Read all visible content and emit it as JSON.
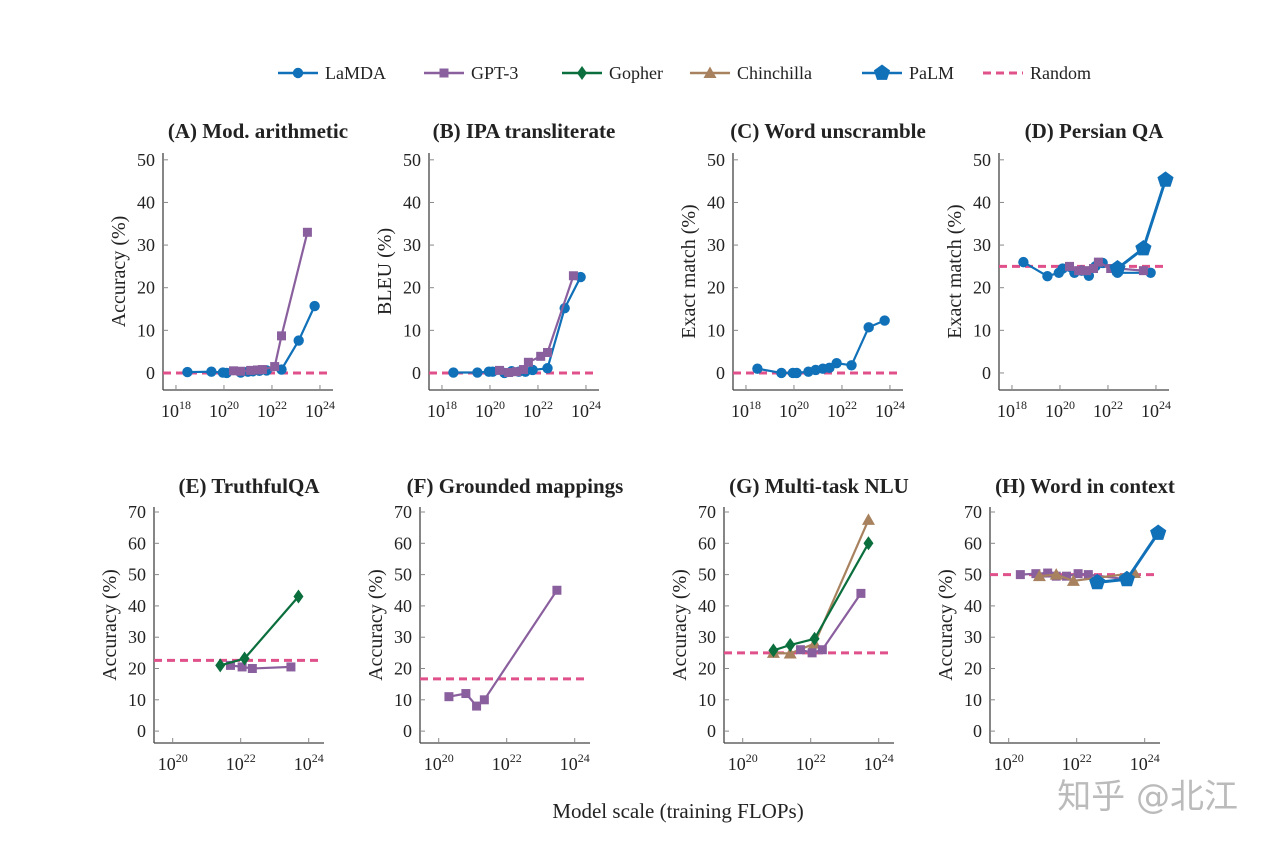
{
  "chart_data": {
    "legend": {
      "placement": "top",
      "items": [
        {
          "key": "lamda",
          "name": "LaMDA",
          "color": "#1070b8",
          "marker": "circle",
          "dashed": false
        },
        {
          "key": "gpt3",
          "name": "GPT-3",
          "color": "#8a5f9e",
          "marker": "square",
          "dashed": false
        },
        {
          "key": "gopher",
          "name": "Gopher",
          "color": "#0b6e3d",
          "marker": "diamond",
          "dashed": false
        },
        {
          "key": "chinchilla",
          "name": "Chinchilla",
          "color": "#a8825f",
          "marker": "triangle",
          "dashed": false
        },
        {
          "key": "palm",
          "name": "PaLM",
          "color": "#1070b8",
          "marker": "pentagon",
          "dashed": false
        },
        {
          "key": "random",
          "name": "Random",
          "color": "#e0508a",
          "marker": "none",
          "dashed": true
        }
      ]
    },
    "xlabel": "Model scale (training FLOPs)",
    "x_scale": "log",
    "grid": false,
    "panels": [
      {
        "type": "line",
        "title": "(A) Mod. arithmetic",
        "ylabel": "Accuracy (%)",
        "ylim": [
          -4,
          52
        ],
        "yticks": [
          0,
          10,
          20,
          30,
          40,
          50
        ],
        "xticks": [
          1e+18,
          1e+20,
          1e+22,
          1e+24
        ],
        "random": 0,
        "series": [
          {
            "key": "lamda",
            "x": [
              3e+18,
              3e+19,
              9e+19,
              1.3e+20,
              5e+20,
              1e+21,
              1.6e+21,
              3e+21,
              6e+21,
              2.5e+22,
              1.3e+23,
              6e+23
            ],
            "y": [
              0.2,
              0.3,
              0.1,
              0,
              0.1,
              0.3,
              0.4,
              0.5,
              0.6,
              0.8,
              7.6,
              15.7
            ]
          },
          {
            "key": "gpt3",
            "x": [
              2.5e+20,
              5e+20,
              1.3e+21,
              2.5e+21,
              4e+21,
              1.3e+22,
              2.5e+22,
              3e+23
            ],
            "y": [
              0.5,
              0.4,
              0.6,
              0.7,
              0.8,
              1.5,
              8.7,
              33
            ]
          }
        ]
      },
      {
        "type": "line",
        "title": "(B) IPA transliterate",
        "ylabel": "BLEU (%)",
        "ylim": [
          -4,
          52
        ],
        "yticks": [
          0,
          10,
          20,
          30,
          40,
          50
        ],
        "xticks": [
          1e+18,
          1e+20,
          1e+22,
          1e+24
        ],
        "random": 0,
        "series": [
          {
            "key": "lamda",
            "x": [
              3e+18,
              3e+19,
              9e+19,
              1.3e+20,
              4e+20,
              8e+20,
              1.6e+21,
              3e+21,
              6e+21,
              2.5e+22,
              1.3e+23,
              6e+23
            ],
            "y": [
              0.1,
              0.1,
              0.3,
              0.3,
              0,
              0.4,
              0.3,
              0.3,
              0.7,
              1.1,
              15.2,
              22.5
            ]
          },
          {
            "key": "gpt3",
            "x": [
              2.5e+20,
              6e+20,
              1.3e+21,
              2.5e+21,
              4e+21,
              1.3e+22,
              2.5e+22,
              3e+23
            ],
            "y": [
              0.6,
              0.1,
              0.3,
              0.8,
              2.5,
              3.9,
              4.8,
              22.8
            ]
          }
        ]
      },
      {
        "type": "line",
        "title": "(C) Word unscramble",
        "ylabel": "Exact match (%)",
        "ylim": [
          -4,
          52
        ],
        "yticks": [
          0,
          10,
          20,
          30,
          40,
          50
        ],
        "xticks": [
          1e+18,
          1e+20,
          1e+22,
          1e+24
        ],
        "random": 0,
        "series": [
          {
            "key": "lamda",
            "x": [
              3e+18,
              3e+19,
              9e+19,
              1.3e+20,
              4e+20,
              8e+20,
              1.6e+21,
              3e+21,
              6e+21,
              2.5e+22,
              1.3e+23,
              6e+23
            ],
            "y": [
              1.0,
              0,
              0,
              0,
              0.3,
              0.7,
              1.0,
              1.2,
              2.3,
              1.8,
              10.7,
              12.3
            ]
          }
        ]
      },
      {
        "type": "line",
        "title": "(D) Persian QA",
        "ylabel": "Exact match (%)",
        "ylim": [
          -4,
          52
        ],
        "yticks": [
          0,
          10,
          20,
          30,
          40,
          50
        ],
        "xticks": [
          1e+18,
          1e+20,
          1e+22,
          1e+24
        ],
        "random": 25,
        "series": [
          {
            "key": "lamda",
            "x": [
              3e+18,
              3e+19,
              9e+19,
              1.3e+20,
              4e+20,
              8e+20,
              1.6e+21,
              3e+21,
              6e+21,
              2.5e+22,
              6e+23
            ],
            "y": [
              26,
              22.7,
              23.5,
              24.5,
              23.5,
              24,
              22.8,
              25,
              25.8,
              23.5,
              23.5
            ]
          },
          {
            "key": "gpt3",
            "x": [
              2.5e+20,
              6e+20,
              1.3e+21,
              2.5e+21,
              4e+21,
              1.3e+22,
              2.5e+22,
              3e+23
            ],
            "y": [
              25,
              24,
              24,
              24.5,
              26,
              24.5,
              24.5,
              24
            ]
          },
          {
            "key": "palm",
            "x": [
              2.5e+22,
              3e+23,
              2.5e+24
            ],
            "y": [
              24.5,
              29.2,
              45.3
            ]
          }
        ]
      },
      {
        "type": "line",
        "title": "(E) TruthfulQA",
        "ylabel": "Accuracy (%)",
        "ylim": [
          -4,
          72
        ],
        "yticks": [
          0,
          10,
          20,
          30,
          40,
          50,
          60,
          70
        ],
        "xticks": [
          1e+20,
          1e+22,
          1e+24
        ],
        "random": 22.6,
        "series": [
          {
            "key": "gpt3",
            "x": [
              5e+21,
              1.1e+22,
              2.2e+22,
              3e+23
            ],
            "y": [
              21,
              20.5,
              20,
              20.5
            ]
          },
          {
            "key": "gopher",
            "x": [
              2.5e+21,
              1.3e+22,
              5e+23
            ],
            "y": [
              21,
              23.2,
              43
            ]
          }
        ]
      },
      {
        "type": "line",
        "title": "(F) Grounded mappings",
        "ylabel": "Accuracy (%)",
        "ylim": [
          -4,
          72
        ],
        "yticks": [
          0,
          10,
          20,
          30,
          40,
          50,
          60,
          70
        ],
        "xticks": [
          1e+20,
          1e+22,
          1e+24
        ],
        "random": 16.7,
        "series": [
          {
            "key": "gpt3",
            "x": [
              2e+20,
              6.3e+20,
              1.3e+21,
              2.2e+21,
              3e+23
            ],
            "y": [
              11,
              12,
              8,
              10,
              45
            ]
          }
        ]
      },
      {
        "type": "line",
        "title": "(G) Multi-task NLU",
        "ylabel": "Accuracy (%)",
        "ylim": [
          -4,
          72
        ],
        "yticks": [
          0,
          10,
          20,
          30,
          40,
          50,
          60,
          70
        ],
        "xticks": [
          1e+20,
          1e+22,
          1e+24
        ],
        "random": 25,
        "series": [
          {
            "key": "chinchilla",
            "x": [
              8e+20,
              2.5e+21,
              1.3e+22,
              5e+23
            ],
            "y": [
              25,
              24.8,
              28,
              67.5
            ]
          },
          {
            "key": "gopher",
            "x": [
              8e+20,
              2.5e+21,
              1.3e+22,
              5e+23
            ],
            "y": [
              25.8,
              27.5,
              29.5,
              60
            ]
          },
          {
            "key": "gpt3",
            "x": [
              5e+21,
              1.1e+22,
              2.2e+22,
              3e+23
            ],
            "y": [
              26,
              25,
              26,
              44
            ]
          }
        ]
      },
      {
        "type": "line",
        "title": "(H) Word in context",
        "ylabel": "Accuracy (%)",
        "ylim": [
          -4,
          72
        ],
        "yticks": [
          0,
          10,
          20,
          30,
          40,
          50,
          60,
          70
        ],
        "xticks": [
          1e+20,
          1e+22,
          1e+24
        ],
        "random": 50,
        "series": [
          {
            "key": "gpt3",
            "x": [
              2.2e+20,
              6.3e+20,
              1.4e+21,
              2.5e+21,
              5e+21,
              1.1e+22,
              2.2e+22,
              3e+23
            ],
            "y": [
              50,
              50.3,
              50.5,
              49.5,
              49.5,
              50.3,
              50,
              48.5
            ]
          },
          {
            "key": "chinchilla",
            "x": [
              8e+20,
              2.5e+21,
              8e+21,
              5e+23
            ],
            "y": [
              49.5,
              50,
              48,
              50.5
            ]
          },
          {
            "key": "palm",
            "x": [
              4e+22,
              3e+23,
              2.5e+24
            ],
            "y": [
              47.5,
              48.5,
              63.3
            ]
          }
        ]
      }
    ]
  },
  "watermark": "知乎 @北江"
}
